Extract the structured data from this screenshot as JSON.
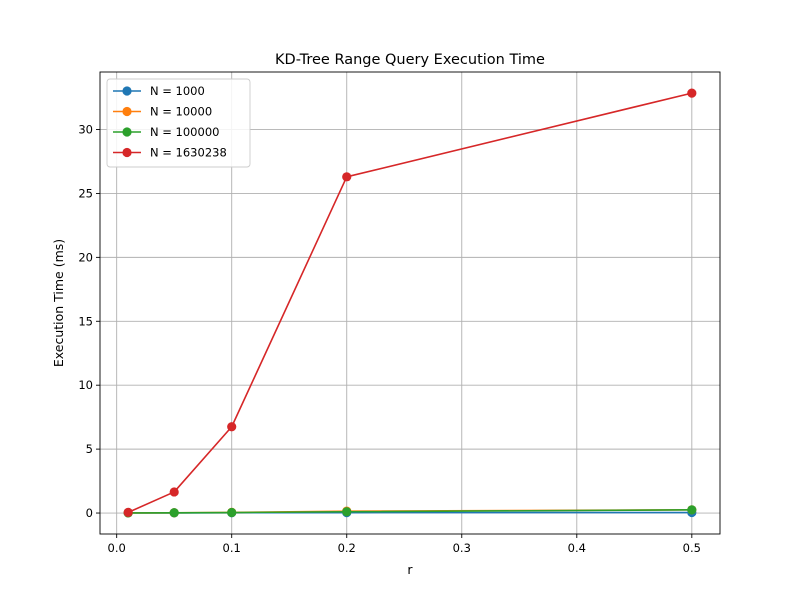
{
  "chart_data": {
    "type": "line",
    "title": "KD-Tree Range Query Execution Time",
    "xlabel": "r",
    "ylabel": "Execution Time (ms)",
    "x": [
      0.01,
      0.05,
      0.1,
      0.2,
      0.5
    ],
    "xlim": [
      -0.0145,
      0.5245
    ],
    "ylim": [
      -1.64,
      34.5
    ],
    "xticks": [
      0.0,
      0.1,
      0.2,
      0.3,
      0.4,
      0.5
    ],
    "xtick_labels": [
      "0.0",
      "0.1",
      "0.2",
      "0.3",
      "0.4",
      "0.5"
    ],
    "yticks": [
      0,
      5,
      10,
      15,
      20,
      25,
      30
    ],
    "ytick_labels": [
      "0",
      "5",
      "10",
      "15",
      "20",
      "25",
      "30"
    ],
    "grid": true,
    "legend_position": "top-left",
    "series": [
      {
        "name": "N = 1000",
        "color": "#1f77b4",
        "values": [
          0.01,
          0.01,
          0.02,
          0.03,
          0.04
        ]
      },
      {
        "name": "N = 10000",
        "color": "#ff7f0e",
        "values": [
          0.01,
          0.02,
          0.05,
          0.15,
          0.25
        ]
      },
      {
        "name": "N = 100000",
        "color": "#2ca02c",
        "values": [
          0.01,
          0.02,
          0.04,
          0.1,
          0.25
        ]
      },
      {
        "name": "N = 1630238",
        "color": "#d62728",
        "values": [
          0.05,
          1.65,
          6.75,
          26.3,
          32.85
        ]
      }
    ]
  }
}
